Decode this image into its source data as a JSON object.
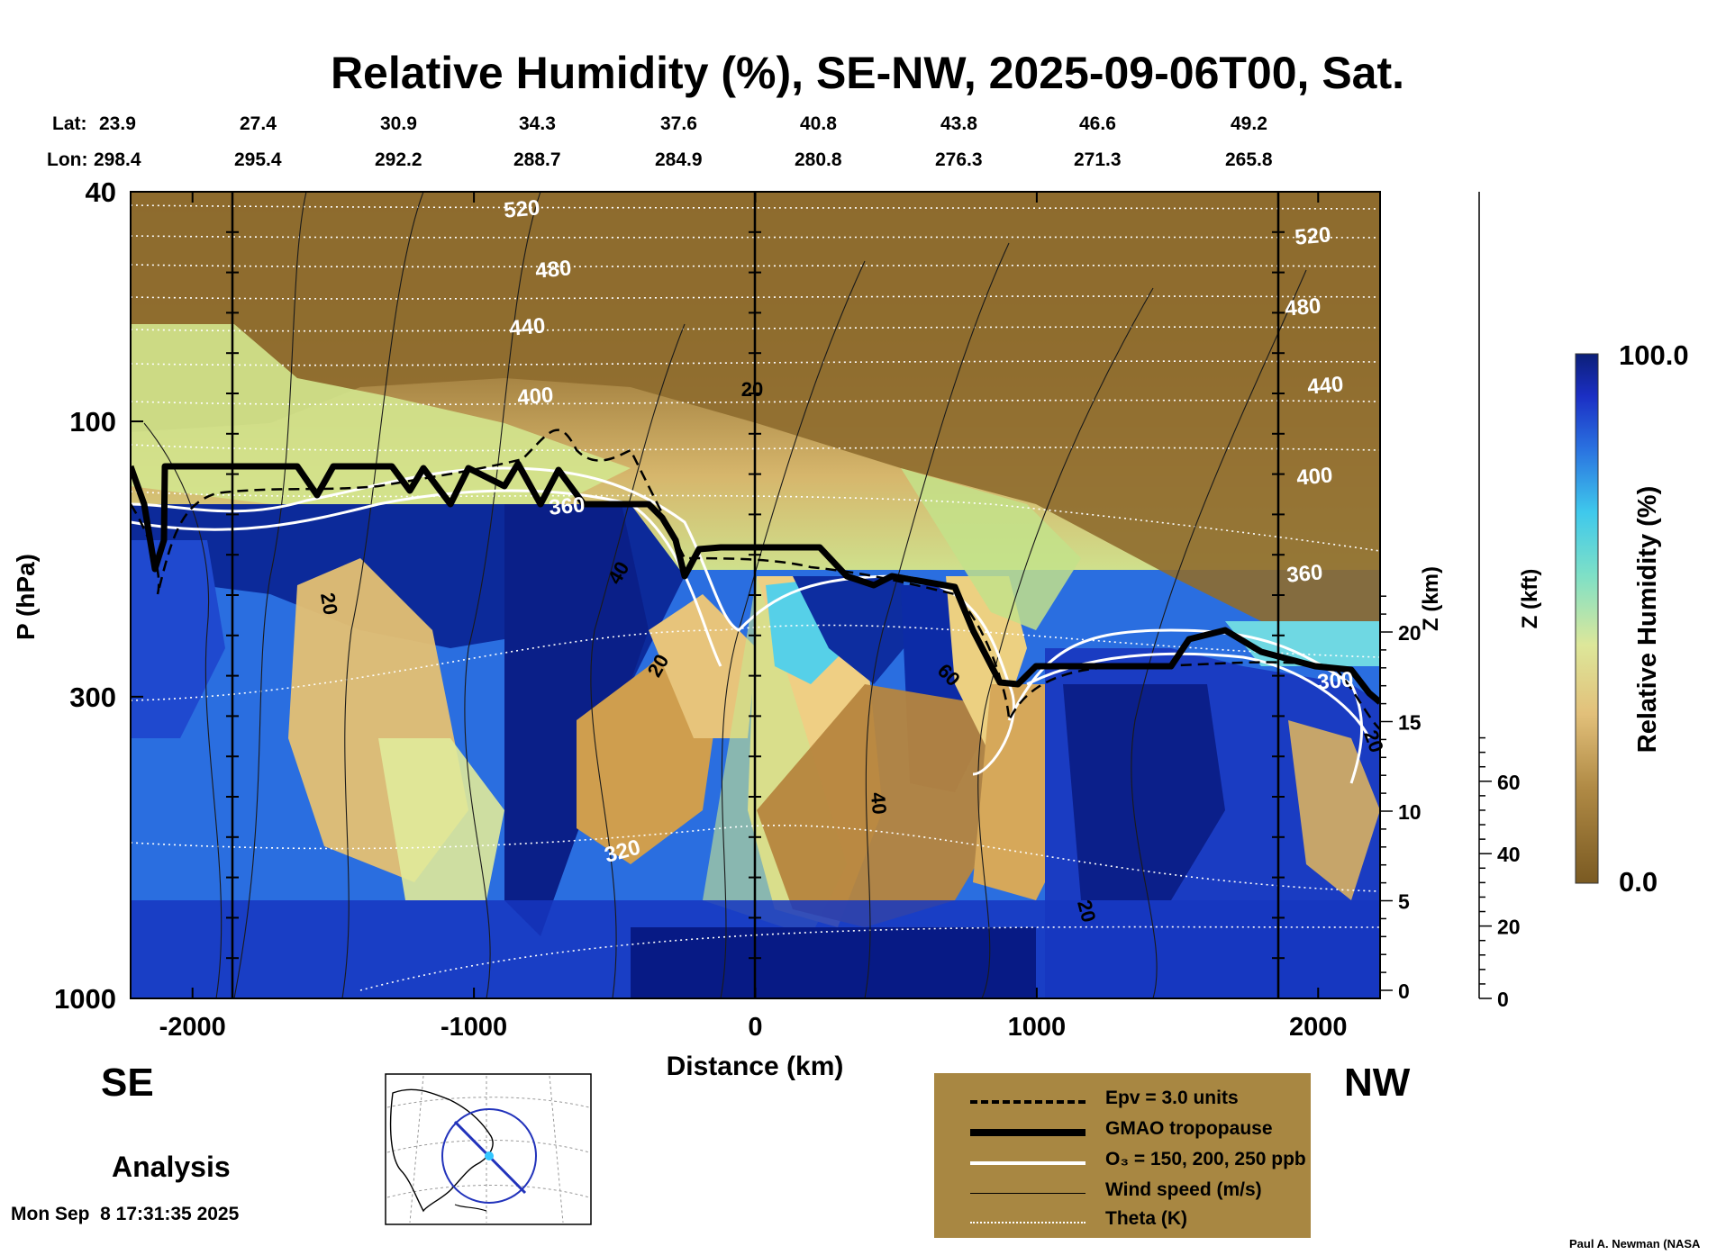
{
  "chart_data": {
    "type": "heatmap",
    "title": "Relative Humidity (%), SE-NW, 2025-09-06T00, Sat.",
    "xlabel": "Distance (km)",
    "ylabel": "P (hPa)",
    "y2label": "Z (km)",
    "y3label": "Z (kft)",
    "colorbar_label": "Relative Humidity (%)",
    "colorbar_range": [
      0.0,
      100.0
    ],
    "colorbar_max_label": "100.0",
    "colorbar_min_label": "0.0",
    "xlim": [
      -2220,
      2220
    ],
    "ylim": [
      1000,
      40
    ],
    "y_scale": "log",
    "x_ticks": [
      -2000,
      -1000,
      0,
      1000,
      2000
    ],
    "y_ticks": [
      40,
      100,
      300,
      1000
    ],
    "z_km_ticks": [
      0,
      5,
      10,
      15,
      20
    ],
    "z_kft_ticks": [
      0,
      20,
      40,
      60
    ],
    "lat_label": "Lat:",
    "lon_label": "Lon:",
    "lat_values": [
      "23.9",
      "27.4",
      "30.9",
      "34.3",
      "37.6",
      "40.8",
      "43.8",
      "46.6",
      "49.2"
    ],
    "lon_values": [
      "298.4",
      "295.4",
      "292.2",
      "288.7",
      "284.9",
      "280.8",
      "276.3",
      "271.3",
      "265.8"
    ],
    "theta_labels": [
      "520",
      "480",
      "440",
      "400",
      "360",
      "320",
      "520",
      "480",
      "440",
      "400",
      "360",
      "300"
    ],
    "wind_labels": [
      "20",
      "20",
      "40",
      "20",
      "60",
      "40",
      "20",
      "20"
    ],
    "direction_left": "SE",
    "direction_right": "NW",
    "colors": {
      "brown": "#8b6a2a",
      "tan": "#d9b46b",
      "light_green": "#c8e48a",
      "cyan": "#4fd6e6",
      "blue": "#1f55d8",
      "dark_blue": "#0a1f8c",
      "legend_bg": "#a88742"
    },
    "legend": [
      {
        "label": "Epv = 3.0 units",
        "style": "dashed-black"
      },
      {
        "label": "GMAO tropopause",
        "style": "thick-black"
      },
      {
        "label": "O₃ = 150, 200, 250 ppb",
        "style": "white"
      },
      {
        "label": "Wind speed (m/s)",
        "style": "thin-black"
      },
      {
        "label": "Theta (K)",
        "style": "dotted-white"
      }
    ]
  },
  "footer": {
    "analysis": "Analysis",
    "date": "Mon Sep  8 17:31:35 2025",
    "credit": "Paul A. Newman (NASA"
  }
}
